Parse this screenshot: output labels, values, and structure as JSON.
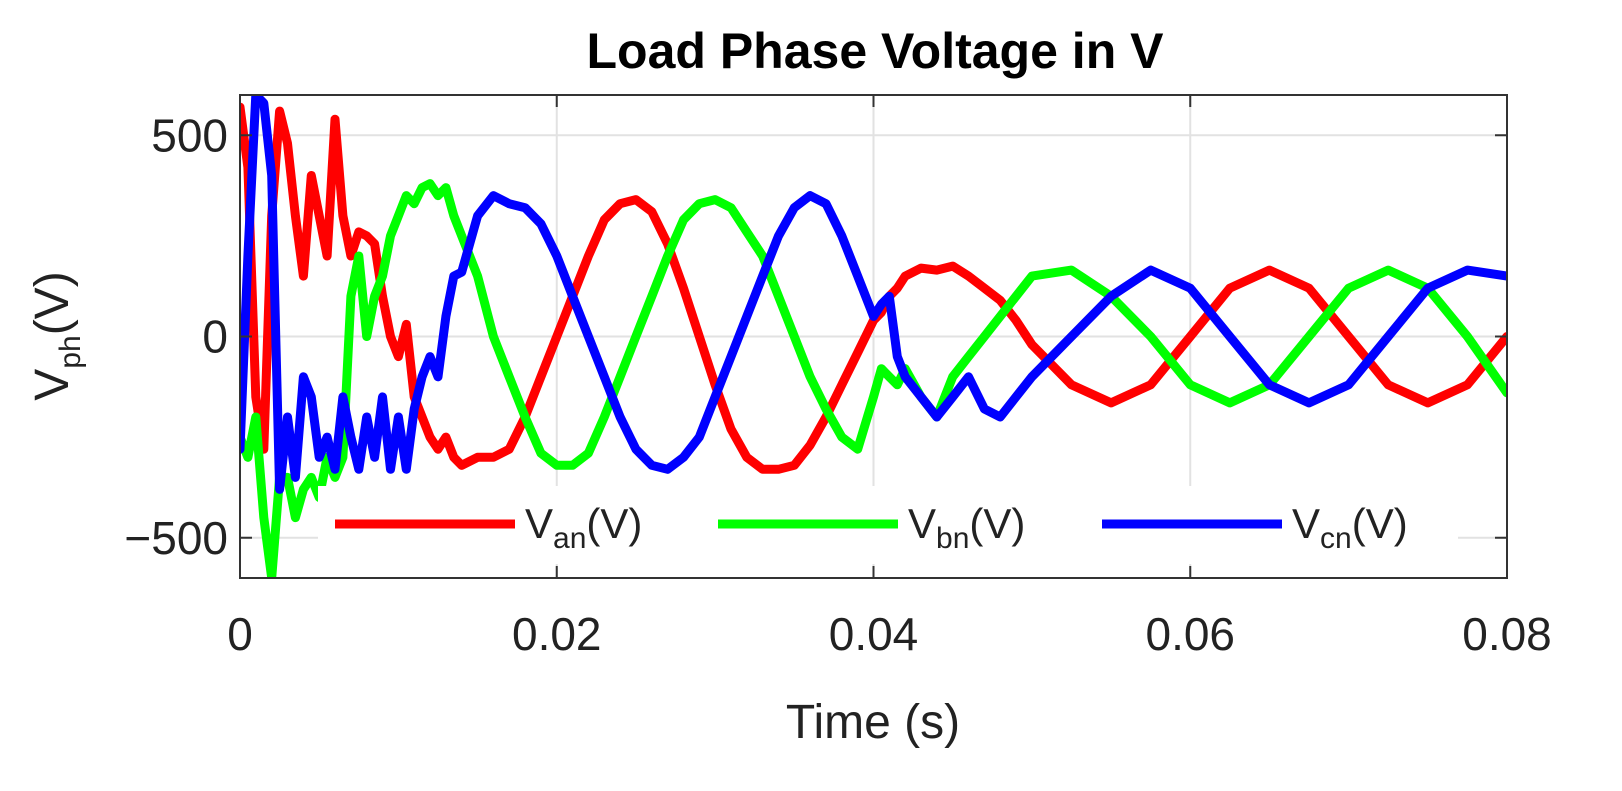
{
  "chart_data": {
    "type": "line",
    "title": "Load Phase Voltage in V",
    "xlabel": "Time (s)",
    "ylabel": {
      "main": "V",
      "sub": "ph",
      "unit": "(V)"
    },
    "xlim": [
      0,
      0.08
    ],
    "ylim": [
      -600,
      600
    ],
    "xticks": [
      0,
      0.02,
      0.04,
      0.06,
      0.08
    ],
    "xtick_labels": [
      "0",
      "0.02",
      "0.04",
      "0.06",
      "0.08"
    ],
    "yticks": [
      500,
      0,
      -500
    ],
    "ytick_labels": [
      "500",
      "0",
      "−500"
    ],
    "grid": true,
    "legend_position": "bottom",
    "series": [
      {
        "name": "V_an(V)",
        "label_main": "V",
        "label_sub": "an",
        "label_unit": "(V)",
        "color": "#ff0000",
        "x": [
          0,
          0.0005,
          0.001,
          0.0015,
          0.002,
          0.0025,
          0.003,
          0.0035,
          0.004,
          0.0045,
          0.005,
          0.0055,
          0.006,
          0.0065,
          0.007,
          0.0075,
          0.008,
          0.0085,
          0.009,
          0.0095,
          0.01,
          0.0105,
          0.011,
          0.0115,
          0.012,
          0.0125,
          0.013,
          0.0135,
          0.014,
          0.015,
          0.016,
          0.017,
          0.018,
          0.019,
          0.02,
          0.021,
          0.022,
          0.023,
          0.024,
          0.025,
          0.026,
          0.027,
          0.028,
          0.029,
          0.03,
          0.031,
          0.032,
          0.033,
          0.034,
          0.035,
          0.036,
          0.037,
          0.038,
          0.039,
          0.04,
          0.0405,
          0.041,
          0.0415,
          0.042,
          0.043,
          0.044,
          0.045,
          0.046,
          0.047,
          0.048,
          0.049,
          0.05,
          0.0525,
          0.055,
          0.0575,
          0.06,
          0.0625,
          0.065,
          0.0675,
          0.07,
          0.0725,
          0.075,
          0.0775,
          0.08
        ],
        "y": [
          570,
          420,
          -150,
          -280,
          300,
          560,
          480,
          300,
          150,
          400,
          300,
          200,
          540,
          300,
          200,
          260,
          250,
          230,
          100,
          0,
          -50,
          30,
          -150,
          -200,
          -250,
          -280,
          -250,
          -300,
          -320,
          -300,
          -300,
          -280,
          -200,
          -100,
          0,
          100,
          200,
          290,
          330,
          340,
          310,
          230,
          120,
          0,
          -120,
          -230,
          -300,
          -330,
          -330,
          -320,
          -270,
          -200,
          -120,
          -40,
          40,
          60,
          100,
          120,
          150,
          170,
          165,
          175,
          150,
          120,
          90,
          40,
          -20,
          -120,
          -165,
          -120,
          0,
          120,
          165,
          120,
          0,
          -120,
          -165,
          -120,
          0
        ]
      },
      {
        "name": "V_bn(V)",
        "label_main": "V",
        "label_sub": "bn",
        "label_unit": "(V)",
        "color": "#00ff00",
        "x": [
          0,
          0.0005,
          0.001,
          0.0015,
          0.002,
          0.0025,
          0.003,
          0.0035,
          0.004,
          0.0045,
          0.005,
          0.0055,
          0.006,
          0.0065,
          0.007,
          0.0075,
          0.008,
          0.0085,
          0.009,
          0.0095,
          0.01,
          0.0105,
          0.011,
          0.0115,
          0.012,
          0.0125,
          0.013,
          0.0135,
          0.014,
          0.015,
          0.016,
          0.017,
          0.018,
          0.019,
          0.02,
          0.021,
          0.022,
          0.023,
          0.024,
          0.025,
          0.026,
          0.027,
          0.028,
          0.029,
          0.03,
          0.031,
          0.032,
          0.033,
          0.034,
          0.035,
          0.036,
          0.037,
          0.038,
          0.039,
          0.04,
          0.0405,
          0.041,
          0.0415,
          0.042,
          0.043,
          0.044,
          0.045,
          0.046,
          0.047,
          0.048,
          0.049,
          0.05,
          0.0525,
          0.055,
          0.0575,
          0.06,
          0.0625,
          0.065,
          0.0675,
          0.07,
          0.0725,
          0.075,
          0.0775,
          0.08
        ],
        "y": [
          -250,
          -300,
          -200,
          -450,
          -600,
          -350,
          -350,
          -450,
          -380,
          -350,
          -400,
          -300,
          -350,
          -300,
          100,
          200,
          0,
          100,
          150,
          250,
          300,
          350,
          330,
          370,
          380,
          350,
          370,
          300,
          250,
          150,
          0,
          -100,
          -200,
          -290,
          -320,
          -320,
          -290,
          -200,
          -100,
          0,
          100,
          200,
          290,
          330,
          340,
          320,
          260,
          200,
          100,
          0,
          -100,
          -180,
          -250,
          -280,
          -150,
          -80,
          -100,
          -120,
          -80,
          -150,
          -200,
          -100,
          -50,
          0,
          50,
          100,
          150,
          165,
          100,
          0,
          -120,
          -165,
          -120,
          0,
          120,
          165,
          120,
          0,
          -140
        ]
      },
      {
        "name": "V_cn(V)",
        "label_main": "V",
        "label_sub": "cn",
        "label_unit": "(V)",
        "color": "#0000ff",
        "x": [
          0,
          0.0005,
          0.001,
          0.0015,
          0.002,
          0.0025,
          0.003,
          0.0035,
          0.004,
          0.0045,
          0.005,
          0.0055,
          0.006,
          0.0065,
          0.007,
          0.0075,
          0.008,
          0.0085,
          0.009,
          0.0095,
          0.01,
          0.0105,
          0.011,
          0.0115,
          0.012,
          0.0125,
          0.013,
          0.0135,
          0.014,
          0.015,
          0.016,
          0.017,
          0.018,
          0.019,
          0.02,
          0.021,
          0.022,
          0.023,
          0.024,
          0.025,
          0.026,
          0.027,
          0.028,
          0.029,
          0.03,
          0.031,
          0.032,
          0.033,
          0.034,
          0.035,
          0.036,
          0.037,
          0.038,
          0.039,
          0.04,
          0.0405,
          0.041,
          0.0415,
          0.042,
          0.043,
          0.044,
          0.045,
          0.046,
          0.047,
          0.048,
          0.049,
          0.05,
          0.0525,
          0.055,
          0.0575,
          0.06,
          0.0625,
          0.065,
          0.0675,
          0.07,
          0.0725,
          0.075,
          0.0775,
          0.08
        ],
        "y": [
          -280,
          200,
          600,
          580,
          400,
          -380,
          -200,
          -350,
          -100,
          -150,
          -300,
          -250,
          -330,
          -150,
          -250,
          -330,
          -200,
          -300,
          -150,
          -330,
          -200,
          -330,
          -180,
          -100,
          -50,
          -100,
          50,
          150,
          160,
          300,
          350,
          330,
          320,
          280,
          200,
          100,
          0,
          -100,
          -200,
          -280,
          -320,
          -330,
          -300,
          -250,
          -150,
          -50,
          50,
          150,
          250,
          320,
          350,
          330,
          250,
          150,
          50,
          80,
          100,
          -50,
          -100,
          -150,
          -200,
          -150,
          -100,
          -180,
          -200,
          -150,
          -100,
          0,
          100,
          165,
          120,
          0,
          -120,
          -165,
          -120,
          0,
          120,
          165,
          150
        ]
      }
    ]
  }
}
